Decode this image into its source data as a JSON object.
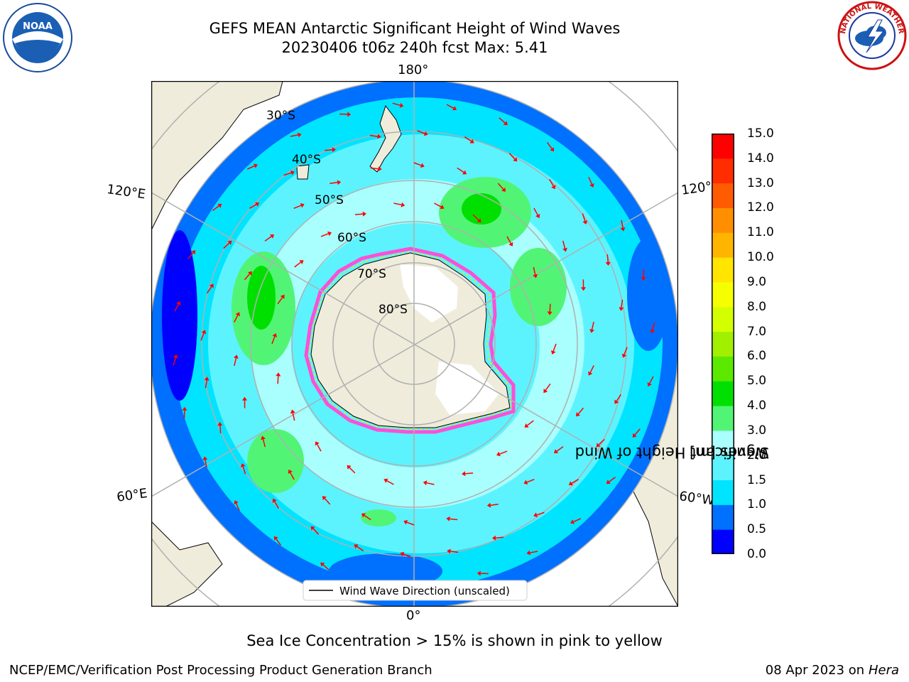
{
  "header": {
    "title_line1": "GEFS MEAN Antarctic Significant Height of Wind Waves",
    "title_line2": "20230406 t06z 240h fcst   Max: 5.41"
  },
  "logos": {
    "noaa_text": "NOAA",
    "nws_text": "NATIONAL WEATHER SERVICE"
  },
  "map": {
    "longitude_labels": {
      "top": "180°",
      "bottom": "0°",
      "upper_left": "120°E",
      "lower_left": "60°E",
      "upper_right": "120°",
      "lower_right": "60°W"
    },
    "latitude_labels": [
      "30°S",
      "40°S",
      "50°S",
      "60°S",
      "70°S",
      "80°S"
    ],
    "legend_label": "Wind Wave Direction (unscaled)",
    "colors": {
      "land": "#efecdb",
      "ocean_low": "#00c8ff",
      "ocean_mid": "#a6fff5",
      "wave_green": "#3ef05a",
      "arrow": "#ff0000",
      "sea_ice": "#ff4fd7"
    }
  },
  "colorbar": {
    "label": "Significant Height of Wind Waves [m]",
    "label_line1": "Significant Height of Wind",
    "label_line2": "Waves [m]",
    "ticks": [
      "15.0",
      "14.0",
      "13.0",
      "12.0",
      "11.0",
      "10.0",
      "9.0",
      "8.0",
      "7.0",
      "6.0",
      "5.0",
      "4.0",
      "3.0",
      "2.0",
      "1.5",
      "1.0",
      "0.5",
      "0.0"
    ],
    "colors": [
      "#0000ff",
      "#0070ff",
      "#00e4ff",
      "#5cf3ff",
      "#a8fffd",
      "#52f475",
      "#00e000",
      "#5de800",
      "#a0f000",
      "#d4ff00",
      "#f6ff00",
      "#ffe500",
      "#ffb400",
      "#ff8f00",
      "#ff5b00",
      "#ff2d00",
      "#ff0000"
    ]
  },
  "footer": {
    "note": "Sea Ice Concentration > 15% is shown in pink to yellow",
    "credit_left": "NCEP/EMC/Verification Post Processing Product Generation Branch",
    "credit_right_date": "08 Apr 2023 on ",
    "credit_right_host": "Hera"
  }
}
